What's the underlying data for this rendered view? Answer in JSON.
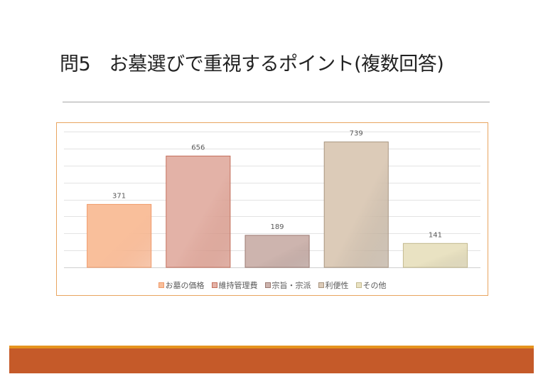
{
  "slide": {
    "title": "問5　お墓選びで重視するポイント(複数回答)"
  },
  "colors": {
    "frame_border": "#e9a560",
    "footer_accent": "#e5931e",
    "footer_bar": "#c55a29"
  },
  "chart_data": {
    "type": "bar",
    "title": "",
    "xlabel": "",
    "ylabel": "",
    "ylim": [
      0,
      800
    ],
    "grid": true,
    "legend_position": "bottom",
    "categories": [
      "お墓の価格",
      "維持管理費",
      "宗旨・宗派",
      "利便性",
      "その他"
    ],
    "values": [
      371,
      656,
      189,
      739,
      141
    ],
    "colors": [
      {
        "fill": "#f9bf9b",
        "stroke": "#f09a6a"
      },
      {
        "fill": "#e3b2a7",
        "stroke": "#c4705d"
      },
      {
        "fill": "#cdb4ae",
        "stroke": "#9b7a72"
      },
      {
        "fill": "#dccbb8",
        "stroke": "#a89580"
      },
      {
        "fill": "#e9e2c2",
        "stroke": "#c3b98e"
      }
    ]
  }
}
